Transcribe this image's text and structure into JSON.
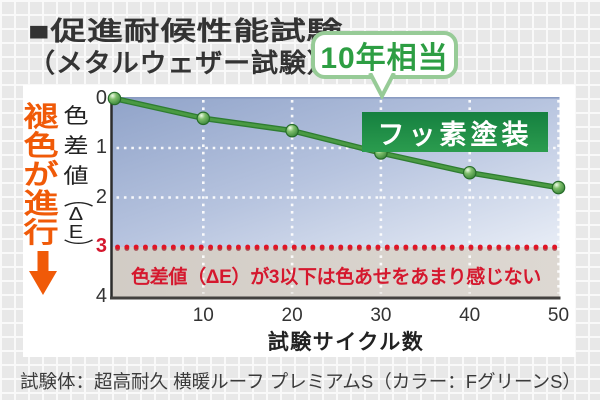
{
  "title": {
    "line1": "■促進耐候性能試験",
    "line2": "（メタルウェザー試験）"
  },
  "callout": {
    "label": "10年相当",
    "points_to_cycle": 30
  },
  "series_label": "フッ素塗装",
  "side_note": {
    "text": "褪色が進行",
    "icon": "down-arrow"
  },
  "threshold_note": "色差値（ΔE）が3以下は色あせをあまり感じない",
  "caption": "試験体：超高耐久 横暖ルーフ プレミアムS（カラー：FグリーンS）",
  "colors": {
    "line": "#3f9140",
    "marker": "#2d7c30",
    "threshold": "#d5182e",
    "fade_note": "#f05a08",
    "callout_green": "#2d9e43",
    "label_box": "#1f8c45",
    "plot_top": "#92a5ca",
    "plot_bottom": "#e6ebf5",
    "band": "#d5cfc9"
  },
  "chart_data": {
    "type": "line",
    "x": [
      0,
      10,
      20,
      30,
      40,
      50
    ],
    "series": [
      {
        "name": "フッ素塗装",
        "values": [
          0,
          0.4,
          0.65,
          1.1,
          1.5,
          1.8
        ]
      }
    ],
    "title": "促進耐候性能試験（メタルウェザー試験）",
    "xlabel": "試験サイクル数",
    "ylabel": "色差値（ΔE）",
    "xticks": [
      10,
      20,
      30,
      40,
      50
    ],
    "yticks": [
      0,
      1,
      2,
      3,
      4
    ],
    "ylim": [
      0,
      4
    ],
    "y_inverted": true,
    "threshold": {
      "y": 3,
      "style": "red-dotted"
    },
    "grid": "white-dotted",
    "legend_position": "in-plot"
  }
}
